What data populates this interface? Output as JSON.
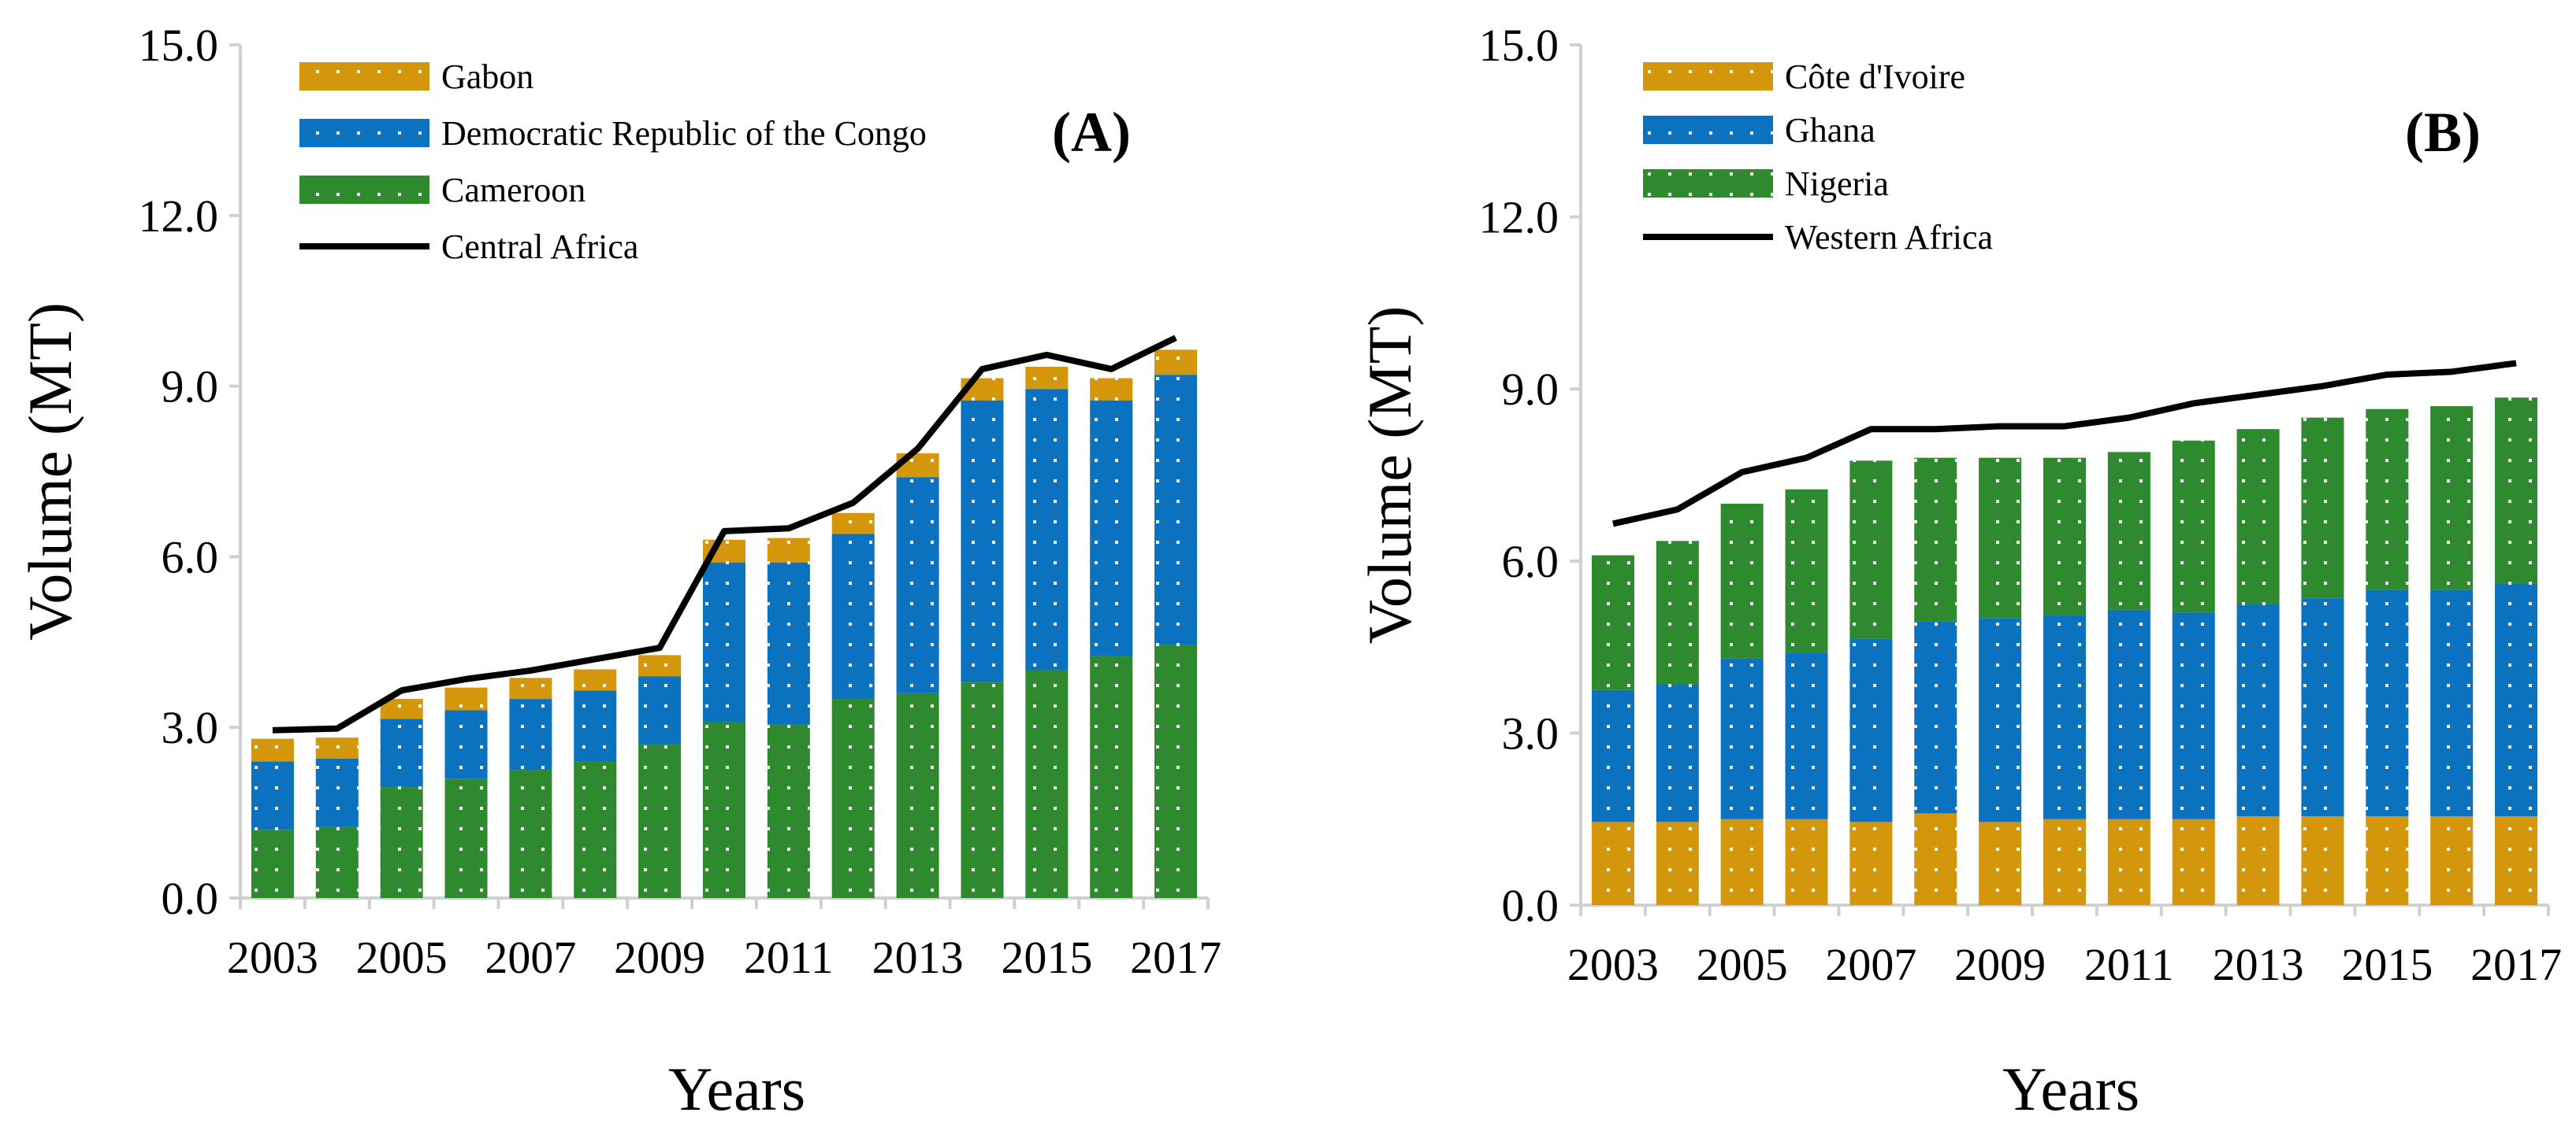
{
  "colors": {
    "gabon": "#d4960a",
    "drc": "#0a72be",
    "cameroon": "#2f8a2f",
    "cote_divoire": "#d4960a",
    "ghana": "#0a72be",
    "nigeria": "#2f8a2f",
    "line": "#000000",
    "axis": "#d0d0d0"
  },
  "chart_data": [
    {
      "type": "bar",
      "stacked": true,
      "panel_label": "(A)",
      "ylabel": "Volume (MT)",
      "xlabel": "Years",
      "ylim": [
        0,
        15
      ],
      "yticks": [
        "0.0",
        "3.0",
        "6.0",
        "9.0",
        "12.0",
        "15.0"
      ],
      "xtick_labels": [
        "2003",
        "2005",
        "2007",
        "2009",
        "2011",
        "2013",
        "2015",
        "2017"
      ],
      "categories": [
        "2003",
        "2004",
        "2005",
        "2006",
        "2007",
        "2008",
        "2009",
        "2010",
        "2011",
        "2012",
        "2013",
        "2014",
        "2015",
        "2016",
        "2017"
      ],
      "series": [
        {
          "name": "Cameroon",
          "color_key": "cameroon",
          "values": [
            1.2,
            1.25,
            1.95,
            2.1,
            2.25,
            2.4,
            2.7,
            3.1,
            3.05,
            3.5,
            3.6,
            3.8,
            4.0,
            4.25,
            4.45
          ]
        },
        {
          "name": "Democratic Republic of the Congo",
          "color_key": "drc",
          "values": [
            1.2,
            1.2,
            1.2,
            1.2,
            1.25,
            1.25,
            1.2,
            2.8,
            2.85,
            2.9,
            3.8,
            4.95,
            4.95,
            4.5,
            4.75
          ]
        },
        {
          "name": "Gabon",
          "color_key": "gabon",
          "values": [
            0.4,
            0.37,
            0.35,
            0.4,
            0.37,
            0.37,
            0.37,
            0.4,
            0.43,
            0.37,
            0.42,
            0.39,
            0.39,
            0.39,
            0.44
          ]
        }
      ],
      "line_series": {
        "name": "Central Africa",
        "values": [
          2.95,
          2.98,
          3.65,
          3.85,
          4.0,
          4.2,
          4.4,
          6.45,
          6.5,
          6.95,
          7.9,
          9.3,
          9.55,
          9.3,
          9.85
        ]
      },
      "legend": [
        "Gabon",
        "Democratic Republic of the Congo",
        "Cameroon",
        "Central Africa"
      ],
      "legend_position": "top-left"
    },
    {
      "type": "bar",
      "stacked": true,
      "panel_label": "(B)",
      "ylabel": "Volume (MT)",
      "xlabel": "Years",
      "ylim": [
        0,
        15
      ],
      "yticks": [
        "0.0",
        "3.0",
        "6.0",
        "9.0",
        "12.0",
        "15.0"
      ],
      "xtick_labels": [
        "2003",
        "2005",
        "2007",
        "2009",
        "2011",
        "2013",
        "2015",
        "2017"
      ],
      "categories": [
        "2003",
        "2004",
        "2005",
        "2006",
        "2007",
        "2008",
        "2009",
        "2010",
        "2011",
        "2012",
        "2013",
        "2014",
        "2015",
        "2016",
        "2017"
      ],
      "series": [
        {
          "name": "Côte d'Ivoire",
          "color_key": "cote_divoire",
          "values": [
            1.45,
            1.45,
            1.5,
            1.5,
            1.45,
            1.6,
            1.45,
            1.5,
            1.5,
            1.5,
            1.55,
            1.55,
            1.55,
            1.55,
            1.55
          ]
        },
        {
          "name": "Ghana",
          "color_key": "ghana",
          "values": [
            2.3,
            2.4,
            2.8,
            2.9,
            3.2,
            3.35,
            3.55,
            3.55,
            3.65,
            3.6,
            3.7,
            3.8,
            3.95,
            3.95,
            4.05
          ]
        },
        {
          "name": "Nigeria",
          "color_key": "nigeria",
          "values": [
            2.35,
            2.5,
            2.7,
            2.85,
            3.1,
            2.85,
            2.8,
            2.75,
            2.75,
            3.0,
            3.05,
            3.15,
            3.15,
            3.2,
            3.25
          ]
        }
      ],
      "line_series": {
        "name": "Western Africa",
        "values": [
          6.65,
          6.9,
          7.55,
          7.8,
          8.3,
          8.3,
          8.35,
          8.35,
          8.5,
          8.75,
          8.9,
          9.05,
          9.25,
          9.3,
          9.45
        ]
      },
      "legend": [
        "Côte d'Ivoire",
        "Ghana",
        "Nigeria",
        "Western Africa"
      ],
      "legend_position": "top-left"
    }
  ]
}
